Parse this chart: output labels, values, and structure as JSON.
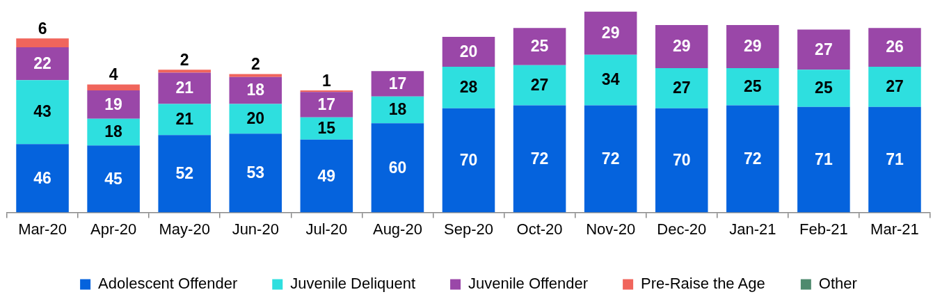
{
  "chart_data": {
    "type": "bar",
    "stacked": true,
    "data_labels": true,
    "legend": "bottom",
    "grid": false,
    "categories": [
      "Mar-20",
      "Apr-20",
      "May-20",
      "Jun-20",
      "Jul-20",
      "Aug-20",
      "Sep-20",
      "Oct-20",
      "Nov-20",
      "Dec-20",
      "Jan-21",
      "Feb-21",
      "Mar-21"
    ],
    "series": [
      {
        "name": "Adolescent Offender",
        "color": "#0563dd",
        "values": [
          46,
          45,
          52,
          53,
          49,
          60,
          70,
          72,
          72,
          70,
          72,
          71,
          71
        ]
      },
      {
        "name": "Juvenile Deliquent",
        "color": "#2edfdf",
        "values": [
          43,
          18,
          21,
          20,
          15,
          18,
          28,
          27,
          34,
          27,
          25,
          25,
          27
        ]
      },
      {
        "name": "Juvenile Offender",
        "color": "#9a47a8",
        "values": [
          22,
          19,
          21,
          18,
          17,
          17,
          20,
          25,
          29,
          29,
          29,
          27,
          26
        ]
      },
      {
        "name": "Pre-Raise the Age",
        "color": "#f0655c",
        "values": [
          6,
          4,
          2,
          2,
          1,
          null,
          null,
          null,
          null,
          null,
          null,
          null,
          null
        ]
      },
      {
        "name": "Other",
        "color": "#4f8a6e",
        "values": [
          null,
          null,
          null,
          null,
          null,
          null,
          null,
          null,
          null,
          null,
          null,
          null,
          null
        ]
      }
    ]
  }
}
